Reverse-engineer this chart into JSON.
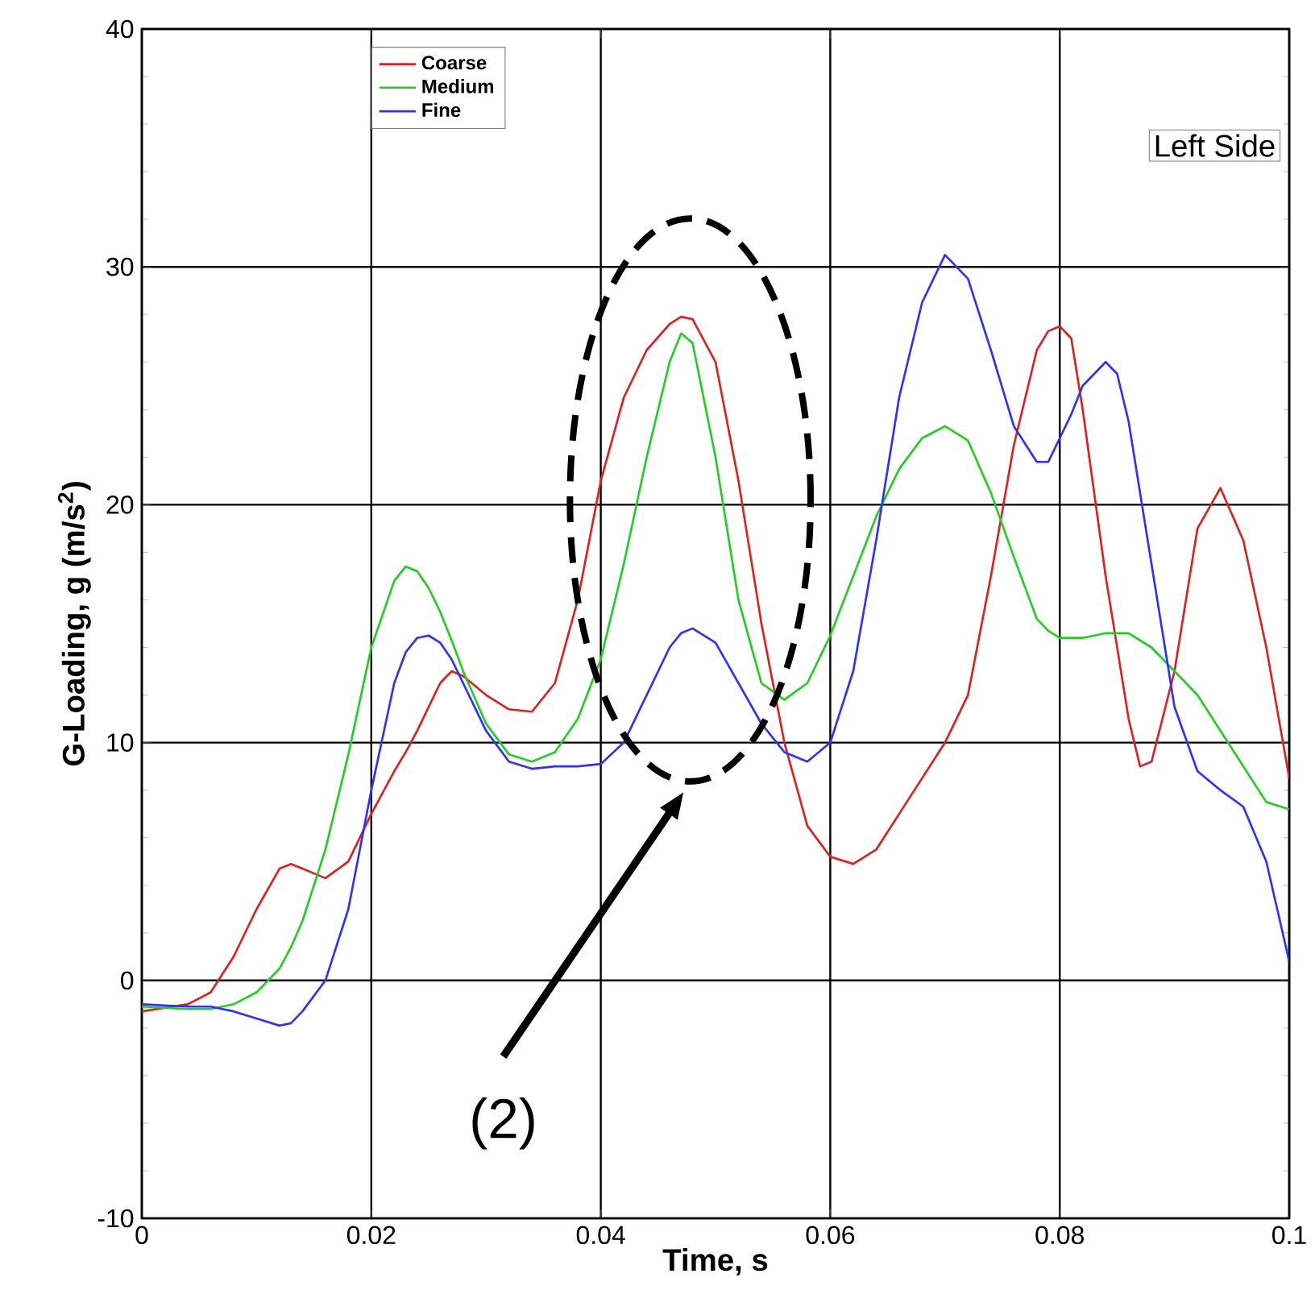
{
  "chart_data": {
    "type": "line",
    "xlabel": "Time, s",
    "ylabel": "G-Loading, g (m/s$^{2}$)",
    "x": [
      0,
      0.004,
      0.006,
      0.008,
      0.01,
      0.012,
      0.013,
      0.014,
      0.016,
      0.018,
      0.02,
      0.022,
      0.023,
      0.024,
      0.025,
      0.026,
      0.027,
      0.028,
      0.03,
      0.032,
      0.034,
      0.036,
      0.038,
      0.04,
      0.042,
      0.044,
      0.046,
      0.047,
      0.048,
      0.05,
      0.052,
      0.054,
      0.056,
      0.058,
      0.06,
      0.062,
      0.064,
      0.066,
      0.068,
      0.07,
      0.072,
      0.074,
      0.076,
      0.078,
      0.079,
      0.08,
      0.081,
      0.082,
      0.084,
      0.085,
      0.086,
      0.087,
      0.088,
      0.09,
      0.092,
      0.094,
      0.096,
      0.098,
      0.1
    ],
    "series": [
      {
        "name": "Coarse",
        "color": "#e02020",
        "values": [
          -1.3,
          -1,
          -0.5,
          1,
          3,
          4.7,
          4.9,
          4.7,
          4.3,
          5,
          7,
          8.8,
          9.6,
          10.5,
          11.5,
          12.5,
          13,
          12.8,
          12,
          11.4,
          11.3,
          12.5,
          16,
          21,
          24.5,
          26.5,
          27.6,
          27.9,
          27.8,
          26,
          21,
          15,
          10,
          6.5,
          5.2,
          4.9,
          5.5,
          7,
          8.5,
          10,
          12,
          17,
          22.5,
          26.5,
          27.3,
          27.5,
          27,
          24,
          17,
          14,
          11,
          9,
          9.2,
          13,
          19,
          20.7,
          18.5,
          14,
          8.5
        ]
      },
      {
        "name": "Medium",
        "color": "#20d020",
        "values": [
          -1.1,
          -1.2,
          -1.2,
          -1,
          -0.5,
          0.5,
          1.4,
          2.5,
          5.5,
          9.5,
          14,
          16.8,
          17.4,
          17.2,
          16.5,
          15.5,
          14.3,
          13,
          10.8,
          9.5,
          9.2,
          9.6,
          11,
          13.5,
          17.5,
          22,
          26,
          27.2,
          26.8,
          22,
          16,
          12.5,
          11.8,
          12.5,
          14.5,
          17,
          19.5,
          21.5,
          22.8,
          23.3,
          22.7,
          20.5,
          17.8,
          15.2,
          14.7,
          14.4,
          14.4,
          14.4,
          14.6,
          14.6,
          14.6,
          14.3,
          14,
          13,
          12,
          10.5,
          9,
          7.5,
          7.2
        ]
      },
      {
        "name": "Fine",
        "color": "#3030ff",
        "values": [
          -1,
          -1.1,
          -1.1,
          -1.3,
          -1.6,
          -1.9,
          -1.8,
          -1.3,
          0,
          3,
          8,
          12.5,
          13.8,
          14.4,
          14.5,
          14.2,
          13.5,
          12.5,
          10.5,
          9.2,
          8.9,
          9,
          9,
          9.1,
          10,
          12,
          14,
          14.6,
          14.8,
          14.2,
          12.5,
          10.8,
          9.6,
          9.2,
          10,
          13,
          18.5,
          24.5,
          28.5,
          30.5,
          29.5,
          26.5,
          23.3,
          21.8,
          21.8,
          22.8,
          23.8,
          25,
          26,
          25.5,
          23.5,
          20.5,
          17.5,
          11.5,
          8.8,
          8,
          7.3,
          5,
          0.8
        ]
      }
    ],
    "xlim": [
      0,
      0.1
    ],
    "ylim": [
      -10,
      40
    ],
    "xticks": [
      0,
      0.02,
      0.04,
      0.06,
      0.08,
      0.1
    ],
    "yticks": [
      -10,
      0,
      10,
      20,
      30,
      40
    ],
    "grid": true,
    "legend": "top left",
    "marker": "none",
    "line_style": "solid",
    "annotations": [
      "Left Side",
      "(2)"
    ]
  }
}
